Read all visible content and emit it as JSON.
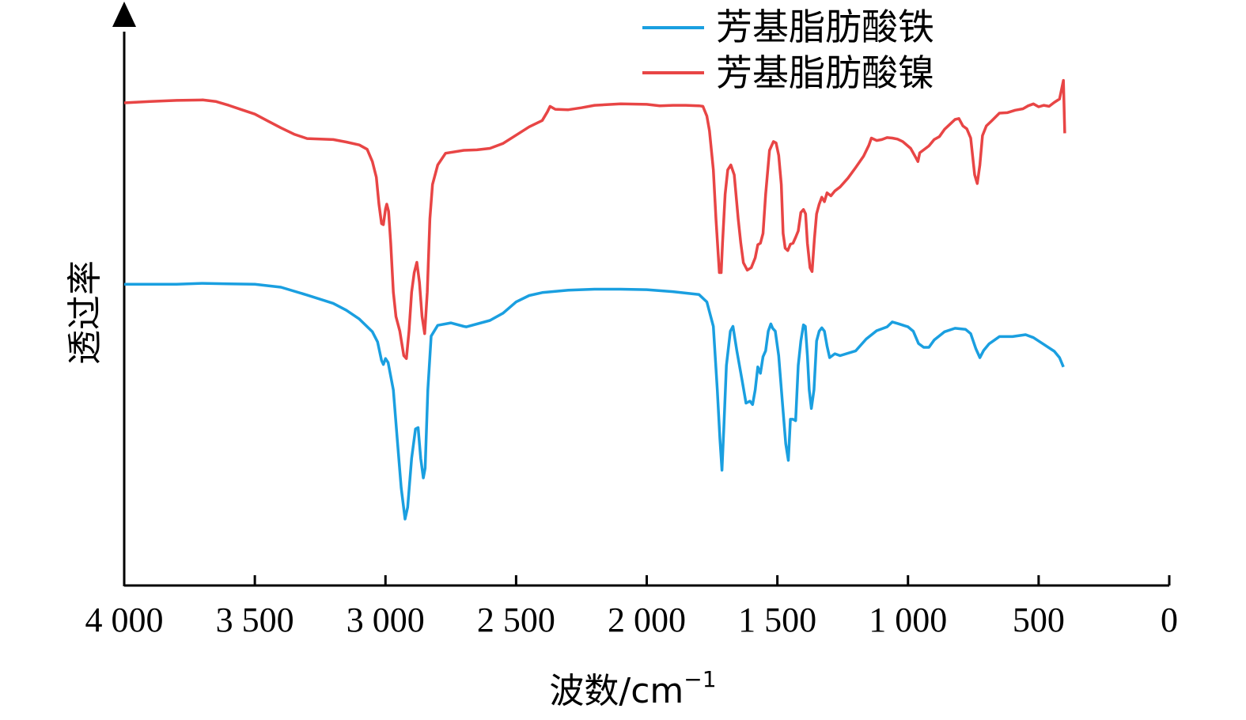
{
  "chart_data": {
    "type": "line",
    "xlabel": "波数/cm",
    "xlabel_superscript": "−1",
    "ylabel": "透过率",
    "xlim": [
      4000,
      0
    ],
    "x_reversed": true,
    "y_ticks_shown": false,
    "x_ticks": [
      {
        "value": 4000,
        "label": "4 000"
      },
      {
        "value": 3500,
        "label": "3 500"
      },
      {
        "value": 3000,
        "label": "3 000"
      },
      {
        "value": 2500,
        "label": "2 500"
      },
      {
        "value": 2000,
        "label": "2 000"
      },
      {
        "value": 1500,
        "label": "1 500"
      },
      {
        "value": 1000,
        "label": "1 000"
      },
      {
        "value": 500,
        "label": "500"
      },
      {
        "value": 0,
        "label": "0"
      }
    ],
    "ylim": [
      0,
      100
    ],
    "legend_position": "top-right",
    "grid": false,
    "series": [
      {
        "name": "芳基脂肪酸铁",
        "color": "#1a9fe0",
        "points": [
          [
            4000,
            61.6
          ],
          [
            3900,
            61.6
          ],
          [
            3800,
            61.6
          ],
          [
            3700,
            61.8
          ],
          [
            3600,
            61.7
          ],
          [
            3500,
            61.6
          ],
          [
            3400,
            61.0
          ],
          [
            3300,
            59.4
          ],
          [
            3200,
            57.7
          ],
          [
            3150,
            56.3
          ],
          [
            3100,
            54.5
          ],
          [
            3050,
            51.9
          ],
          [
            3030,
            49.8
          ],
          [
            3015,
            46.0
          ],
          [
            3008,
            45.2
          ],
          [
            3000,
            46.4
          ],
          [
            2990,
            45.6
          ],
          [
            2970,
            40.0
          ],
          [
            2955,
            30.0
          ],
          [
            2940,
            20.0
          ],
          [
            2925,
            13.6
          ],
          [
            2915,
            16.0
          ],
          [
            2900,
            26.0
          ],
          [
            2885,
            32.0
          ],
          [
            2875,
            32.3
          ],
          [
            2865,
            26.0
          ],
          [
            2855,
            22.0
          ],
          [
            2848,
            24.0
          ],
          [
            2838,
            40.0
          ],
          [
            2825,
            51.0
          ],
          [
            2800,
            53.2
          ],
          [
            2750,
            53.7
          ],
          [
            2700,
            53.0
          ],
          [
            2690,
            52.9
          ],
          [
            2600,
            54.2
          ],
          [
            2550,
            55.7
          ],
          [
            2500,
            58.0
          ],
          [
            2450,
            59.3
          ],
          [
            2400,
            59.9
          ],
          [
            2300,
            60.4
          ],
          [
            2200,
            60.6
          ],
          [
            2100,
            60.6
          ],
          [
            2000,
            60.5
          ],
          [
            1900,
            60.1
          ],
          [
            1800,
            59.5
          ],
          [
            1770,
            58.0
          ],
          [
            1745,
            53.0
          ],
          [
            1730,
            40.0
          ],
          [
            1720,
            30.0
          ],
          [
            1712,
            23.6
          ],
          [
            1705,
            32.0
          ],
          [
            1695,
            45.0
          ],
          [
            1680,
            52.0
          ],
          [
            1670,
            53.0
          ],
          [
            1655,
            48.0
          ],
          [
            1645,
            45.0
          ],
          [
            1635,
            42.0
          ],
          [
            1620,
            37.3
          ],
          [
            1605,
            37.7
          ],
          [
            1595,
            37.0
          ],
          [
            1585,
            40.0
          ],
          [
            1575,
            44.7
          ],
          [
            1565,
            43.4
          ],
          [
            1555,
            46.8
          ],
          [
            1545,
            48.0
          ],
          [
            1535,
            52.0
          ],
          [
            1525,
            53.5
          ],
          [
            1518,
            52.6
          ],
          [
            1508,
            52.0
          ],
          [
            1495,
            47.0
          ],
          [
            1480,
            37.0
          ],
          [
            1468,
            29.0
          ],
          [
            1458,
            25.6
          ],
          [
            1450,
            34.0
          ],
          [
            1440,
            34.0
          ],
          [
            1430,
            33.7
          ],
          [
            1420,
            45.0
          ],
          [
            1410,
            50.0
          ],
          [
            1400,
            53.3
          ],
          [
            1393,
            53.0
          ],
          [
            1385,
            47.0
          ],
          [
            1378,
            40.0
          ],
          [
            1370,
            36.2
          ],
          [
            1360,
            40.0
          ],
          [
            1350,
            50.0
          ],
          [
            1340,
            52.0
          ],
          [
            1330,
            52.7
          ],
          [
            1320,
            52.0
          ],
          [
            1310,
            49.0
          ],
          [
            1300,
            46.6
          ],
          [
            1280,
            47.4
          ],
          [
            1260,
            47.0
          ],
          [
            1200,
            48.0
          ],
          [
            1160,
            50.4
          ],
          [
            1120,
            52.1
          ],
          [
            1080,
            52.9
          ],
          [
            1060,
            53.9
          ],
          [
            1040,
            53.6
          ],
          [
            1000,
            52.9
          ],
          [
            980,
            52.0
          ],
          [
            960,
            49.5
          ],
          [
            940,
            48.7
          ],
          [
            920,
            48.7
          ],
          [
            900,
            50.2
          ],
          [
            860,
            51.9
          ],
          [
            820,
            52.6
          ],
          [
            780,
            52.4
          ],
          [
            760,
            51.5
          ],
          [
            740,
            48.4
          ],
          [
            725,
            46.6
          ],
          [
            710,
            48.1
          ],
          [
            690,
            49.4
          ],
          [
            650,
            50.9
          ],
          [
            600,
            50.9
          ],
          [
            550,
            51.3
          ],
          [
            520,
            50.7
          ],
          [
            480,
            49.3
          ],
          [
            440,
            47.9
          ],
          [
            420,
            46.6
          ],
          [
            405,
            44.7
          ]
        ]
      },
      {
        "name": "芳基脂肪酸镍",
        "color": "#e84545",
        "points": [
          [
            4000,
            98.7
          ],
          [
            3900,
            99.0
          ],
          [
            3800,
            99.2
          ],
          [
            3700,
            99.3
          ],
          [
            3650,
            99.0
          ],
          [
            3600,
            98.2
          ],
          [
            3550,
            97.3
          ],
          [
            3500,
            96.4
          ],
          [
            3450,
            95.0
          ],
          [
            3400,
            93.6
          ],
          [
            3350,
            92.3
          ],
          [
            3300,
            91.4
          ],
          [
            3200,
            91.2
          ],
          [
            3150,
            90.7
          ],
          [
            3100,
            90.1
          ],
          [
            3070,
            89.2
          ],
          [
            3050,
            86.7
          ],
          [
            3035,
            83.5
          ],
          [
            3025,
            78.0
          ],
          [
            3015,
            74.0
          ],
          [
            3008,
            73.8
          ],
          [
            3000,
            77.0
          ],
          [
            2995,
            78.0
          ],
          [
            2988,
            76.5
          ],
          [
            2980,
            70.0
          ],
          [
            2970,
            60.0
          ],
          [
            2960,
            55.0
          ],
          [
            2945,
            52.0
          ],
          [
            2930,
            47.0
          ],
          [
            2920,
            46.4
          ],
          [
            2910,
            52.0
          ],
          [
            2900,
            60.0
          ],
          [
            2890,
            64.0
          ],
          [
            2880,
            66.1
          ],
          [
            2870,
            62.0
          ],
          [
            2860,
            55.0
          ],
          [
            2850,
            51.5
          ],
          [
            2840,
            60.0
          ],
          [
            2830,
            75.0
          ],
          [
            2820,
            82.0
          ],
          [
            2800,
            86.0
          ],
          [
            2770,
            88.4
          ],
          [
            2700,
            89.0
          ],
          [
            2650,
            89.1
          ],
          [
            2600,
            89.4
          ],
          [
            2550,
            90.4
          ],
          [
            2500,
            92.1
          ],
          [
            2450,
            93.8
          ],
          [
            2400,
            95.1
          ],
          [
            2380,
            96.9
          ],
          [
            2370,
            98.0
          ],
          [
            2350,
            97.4
          ],
          [
            2300,
            97.3
          ],
          [
            2250,
            97.7
          ],
          [
            2200,
            98.2
          ],
          [
            2100,
            98.5
          ],
          [
            2000,
            98.4
          ],
          [
            1950,
            98.1
          ],
          [
            1900,
            98.2
          ],
          [
            1850,
            98.2
          ],
          [
            1800,
            98.1
          ],
          [
            1785,
            98.0
          ],
          [
            1770,
            96.0
          ],
          [
            1760,
            93.0
          ],
          [
            1745,
            85.0
          ],
          [
            1735,
            75.0
          ],
          [
            1722,
            64.0
          ],
          [
            1715,
            64.0
          ],
          [
            1710,
            70.0
          ],
          [
            1700,
            80.0
          ],
          [
            1690,
            85.0
          ],
          [
            1678,
            86.0
          ],
          [
            1665,
            84.0
          ],
          [
            1650,
            75.0
          ],
          [
            1640,
            70.0
          ],
          [
            1630,
            66.0
          ],
          [
            1615,
            64.5
          ],
          [
            1600,
            65.0
          ],
          [
            1585,
            67.0
          ],
          [
            1575,
            69.7
          ],
          [
            1565,
            70.0
          ],
          [
            1555,
            72.0
          ],
          [
            1545,
            80.0
          ],
          [
            1530,
            89.0
          ],
          [
            1515,
            90.8
          ],
          [
            1505,
            90.5
          ],
          [
            1495,
            88.0
          ],
          [
            1485,
            82.0
          ],
          [
            1478,
            72.0
          ],
          [
            1470,
            69.0
          ],
          [
            1460,
            68.5
          ],
          [
            1450,
            69.8
          ],
          [
            1440,
            70.0
          ],
          [
            1430,
            71.2
          ],
          [
            1420,
            72.5
          ],
          [
            1410,
            76.3
          ],
          [
            1400,
            76.9
          ],
          [
            1392,
            76.0
          ],
          [
            1385,
            70.0
          ],
          [
            1375,
            65.0
          ],
          [
            1367,
            64.2
          ],
          [
            1358,
            71.0
          ],
          [
            1350,
            76.0
          ],
          [
            1340,
            78.0
          ],
          [
            1330,
            79.4
          ],
          [
            1320,
            78.5
          ],
          [
            1310,
            80.3
          ],
          [
            1295,
            79.7
          ],
          [
            1280,
            80.7
          ],
          [
            1260,
            81.5
          ],
          [
            1230,
            83.3
          ],
          [
            1200,
            85.5
          ],
          [
            1170,
            87.8
          ],
          [
            1150,
            90.0
          ],
          [
            1140,
            91.5
          ],
          [
            1120,
            91.0
          ],
          [
            1100,
            91.2
          ],
          [
            1080,
            91.6
          ],
          [
            1060,
            91.5
          ],
          [
            1040,
            91.3
          ],
          [
            1020,
            90.8
          ],
          [
            990,
            89.4
          ],
          [
            970,
            87.5
          ],
          [
            962,
            86.7
          ],
          [
            955,
            88.5
          ],
          [
            940,
            89.1
          ],
          [
            920,
            89.9
          ],
          [
            900,
            91.2
          ],
          [
            880,
            91.8
          ],
          [
            860,
            93.3
          ],
          [
            840,
            94.3
          ],
          [
            820,
            95.3
          ],
          [
            805,
            95.5
          ],
          [
            790,
            94.0
          ],
          [
            775,
            93.4
          ],
          [
            760,
            91.5
          ],
          [
            745,
            84.0
          ],
          [
            735,
            82.2
          ],
          [
            725,
            86.0
          ],
          [
            715,
            92.0
          ],
          [
            700,
            94.0
          ],
          [
            680,
            95.0
          ],
          [
            650,
            96.6
          ],
          [
            620,
            96.7
          ],
          [
            590,
            97.2
          ],
          [
            560,
            97.5
          ],
          [
            540,
            98.1
          ],
          [
            520,
            98.5
          ],
          [
            500,
            97.9
          ],
          [
            480,
            98.2
          ],
          [
            460,
            98.0
          ],
          [
            440,
            98.8
          ],
          [
            420,
            99.5
          ],
          [
            412,
            101.5
          ],
          [
            405,
            103.3
          ],
          [
            400,
            92.5
          ]
        ]
      }
    ]
  }
}
